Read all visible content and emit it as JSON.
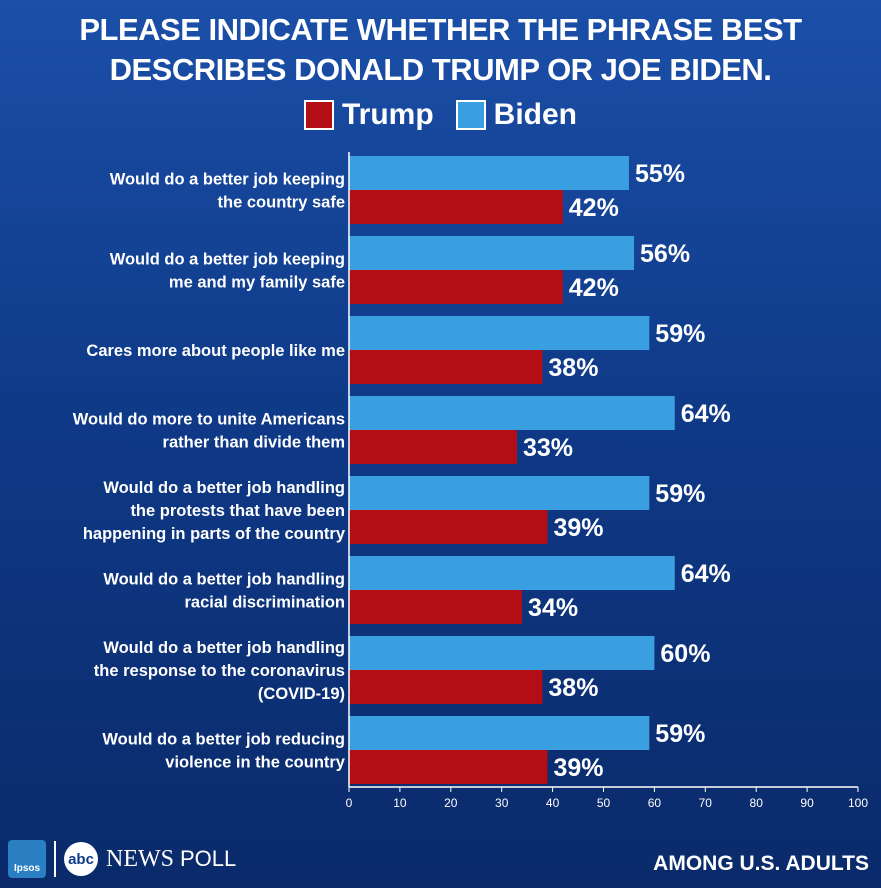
{
  "header": {
    "title_line1": "PLEASE INDICATE WHETHER THE PHRASE BEST",
    "title_line2": "DESCRIBES DONALD TRUMP OR JOE BIDEN."
  },
  "legend": {
    "trump_label": "Trump",
    "biden_label": "Biden"
  },
  "colors": {
    "trump": "#b30e16",
    "biden": "#3a9fe0"
  },
  "chart_data": {
    "type": "bar",
    "orientation": "horizontal",
    "categories": [
      [
        "Would do a better job keeping",
        "the country safe"
      ],
      [
        "Would do a better job keeping",
        "me and my family safe"
      ],
      [
        "Cares more about people like me"
      ],
      [
        "Would do more to unite Americans",
        "rather than divide them"
      ],
      [
        "Would do a better job handling",
        "the protests that have been",
        "happening in parts of the country"
      ],
      [
        "Would do a better job handling",
        "racial discrimination"
      ],
      [
        "Would do a better job handling",
        "the response to the coronavirus",
        "(COVID-19)"
      ],
      [
        "Would do a better job reducing",
        "violence in the country"
      ]
    ],
    "series": [
      {
        "name": "Biden",
        "values": [
          55,
          56,
          59,
          64,
          59,
          64,
          60,
          59
        ]
      },
      {
        "name": "Trump",
        "values": [
          42,
          42,
          38,
          33,
          39,
          34,
          38,
          39
        ]
      }
    ],
    "xlim": [
      0,
      100
    ],
    "xticks": [
      0,
      10,
      20,
      30,
      40,
      50,
      60,
      70,
      80,
      90,
      100
    ],
    "value_suffix": "%",
    "legend_position": "top-center",
    "grid": false
  },
  "footer": {
    "ipsos_label": "Ipsos",
    "abc_label": "abc",
    "news_label": "NEWS",
    "poll_label": "POLL",
    "note": "AMONG U.S. ADULTS"
  }
}
